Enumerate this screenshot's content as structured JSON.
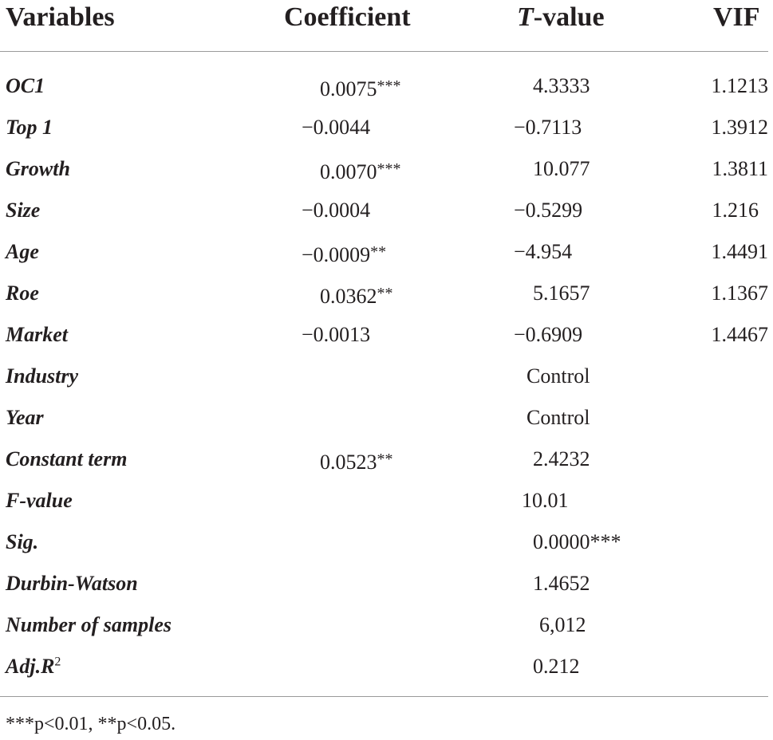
{
  "table": {
    "headers": {
      "variables": "Variables",
      "coefficient": "Coefficient",
      "t_italic": "T",
      "t_rest": "-value",
      "vif": "VIF"
    },
    "rows": [
      {
        "label": "OC1",
        "coef": "0.0075",
        "coef_stars": "***",
        "t": "4.3333",
        "vif": "1.1213"
      },
      {
        "label": "Top 1",
        "coef": "−0.0044",
        "coef_stars": "",
        "t": "−0.7113",
        "vif": "1.3912"
      },
      {
        "label": "Growth",
        "coef": "0.0070",
        "coef_stars": "***",
        "t": "10.077",
        "vif": "1.3811"
      },
      {
        "label": "Size",
        "coef": "−0.0004",
        "coef_stars": "",
        "t": "−0.5299",
        "vif": "1.216"
      },
      {
        "label": "Age",
        "coef": "−0.0009",
        "coef_stars": "**",
        "t": "−4.954",
        "vif": "1.4491"
      },
      {
        "label": "Roe",
        "coef": "0.0362",
        "coef_stars": "**",
        "t": "5.1657",
        "vif": "1.1367"
      },
      {
        "label": "Market",
        "coef": "−0.0013",
        "coef_stars": "",
        "t": "−0.6909",
        "vif": "1.4467"
      },
      {
        "label": "Industry",
        "coef": "",
        "coef_stars": "",
        "t": "Control",
        "vif": ""
      },
      {
        "label": "Year",
        "coef": "",
        "coef_stars": "",
        "t": "Control",
        "vif": ""
      },
      {
        "label": "Constant term",
        "coef": "0.0523",
        "coef_stars": "**",
        "t": "2.4232",
        "vif": ""
      },
      {
        "label": "F-value",
        "coef": "",
        "coef_stars": "",
        "t": "10.01",
        "vif": ""
      },
      {
        "label": "Sig.",
        "coef": "",
        "coef_stars": "",
        "t": "0.0000***",
        "vif": ""
      },
      {
        "label": "Durbin-Watson",
        "coef": "",
        "coef_stars": "",
        "t": "1.4652",
        "vif": ""
      },
      {
        "label": "Number of samples",
        "coef": "",
        "coef_stars": "",
        "t": "6,012",
        "vif": ""
      },
      {
        "label": "Adj.R",
        "label_sup": "2",
        "coef": "",
        "coef_stars": "",
        "t": "0.212",
        "vif": ""
      }
    ]
  },
  "footnote": "***p<0.01, **p<0.05."
}
